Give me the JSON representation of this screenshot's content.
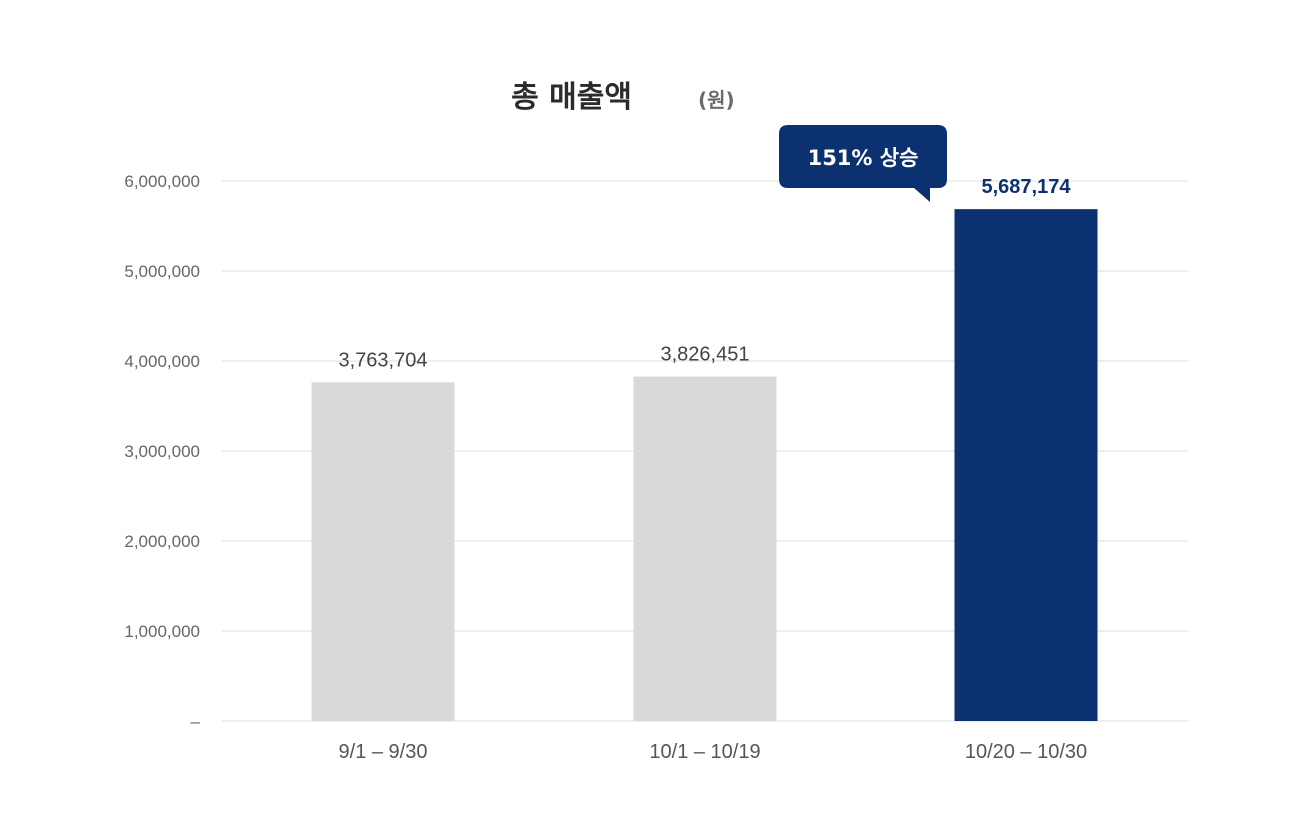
{
  "chart_data": {
    "type": "bar",
    "title": "총 매출액",
    "unit": "(원)",
    "categories": [
      "9/1 – 9/30",
      "10/1 – 10/19",
      "10/20 – 10/30"
    ],
    "values": [
      3763704,
      3826451,
      5687174
    ],
    "value_labels": [
      "3,763,704",
      "3,826,451",
      "5,687,174"
    ],
    "highlight_index": 2,
    "yticks": [
      0,
      1000000,
      2000000,
      3000000,
      4000000,
      5000000,
      6000000
    ],
    "ytick_labels": [
      "–",
      "1,000,000",
      "2,000,000",
      "3,000,000",
      "4,000,000",
      "5,000,000",
      "6,000,000"
    ],
    "ylim": [
      0,
      6000000
    ],
    "grid": true,
    "annotation": {
      "text": "151% 상승",
      "category_index": 2
    },
    "colors": {
      "bar": "#d9d9d9",
      "highlight": "#0c3170",
      "callout": "#0c3170"
    }
  }
}
